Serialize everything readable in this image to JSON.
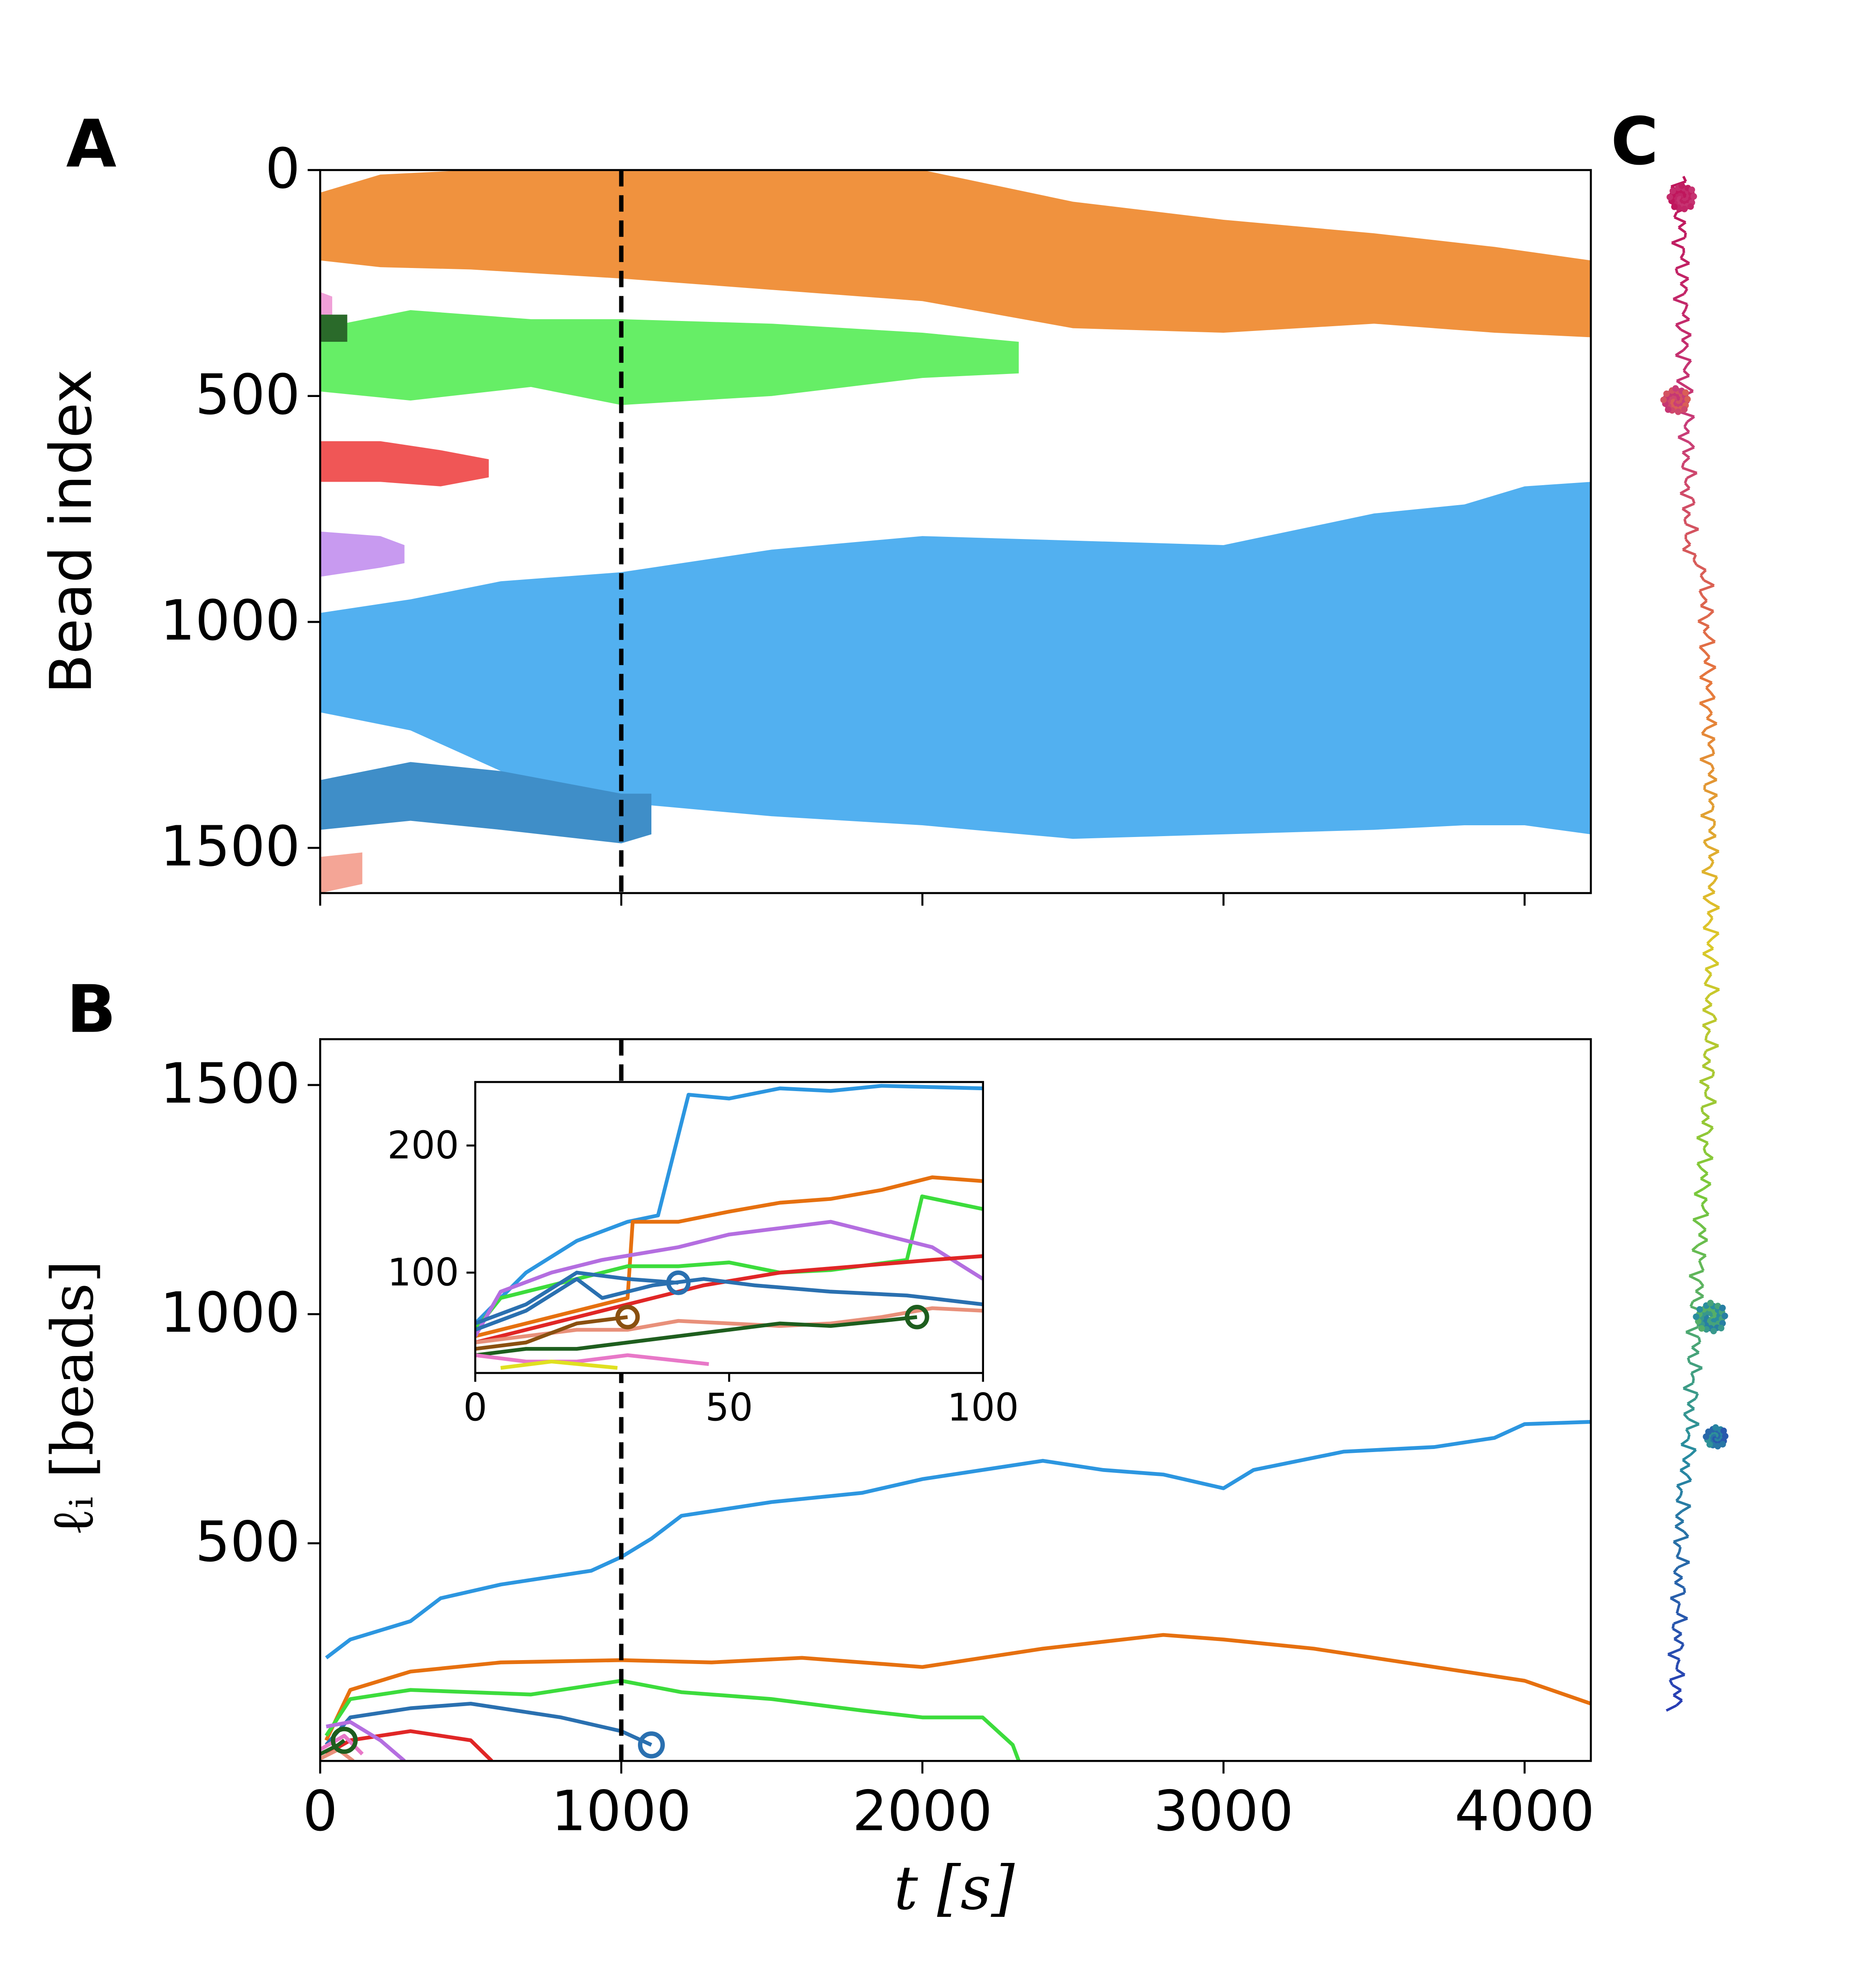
{
  "panel_c": {
    "label": "C"
  },
  "chart_data": [
    {
      "type": "band",
      "label": "A",
      "ylabel": "Bead index",
      "xlim": [
        0,
        4220
      ],
      "xticks": [
        0,
        1000,
        2000,
        3000,
        4000
      ],
      "ylim": [
        0,
        1600
      ],
      "y_inverted": true,
      "yticks": [
        0,
        500,
        1000,
        1500
      ],
      "vline": 1000,
      "series": [
        {
          "color": "#f0923e",
          "x": [
            0,
            200,
            500,
            1000,
            2000,
            2500,
            3000,
            3500,
            3900,
            4220
          ],
          "low": [
            50,
            10,
            0,
            0,
            0,
            70,
            110,
            140,
            170,
            200
          ],
          "high": [
            200,
            215,
            220,
            240,
            290,
            350,
            360,
            340,
            360,
            370
          ]
        },
        {
          "color": "#66ee66",
          "x": [
            0,
            300,
            700,
            1000,
            1500,
            2000,
            2320
          ],
          "low": [
            350,
            310,
            330,
            330,
            340,
            360,
            380
          ],
          "high": [
            490,
            510,
            480,
            520,
            500,
            460,
            450
          ]
        },
        {
          "color": "#f05656",
          "x": [
            0,
            200,
            400,
            560
          ],
          "low": [
            600,
            600,
            620,
            640
          ],
          "high": [
            690,
            690,
            700,
            680
          ]
        },
        {
          "color": "#c89af0",
          "x": [
            0,
            200,
            280
          ],
          "low": [
            800,
            810,
            830
          ],
          "high": [
            900,
            880,
            870
          ]
        },
        {
          "color": "#52b0f0",
          "x": [
            0,
            300,
            600,
            1000,
            1500,
            2000,
            2500,
            3000,
            3500,
            3800,
            4000,
            4220
          ],
          "low": [
            980,
            950,
            910,
            890,
            840,
            810,
            820,
            830,
            760,
            740,
            700,
            690
          ],
          "high": [
            1200,
            1240,
            1330,
            1400,
            1430,
            1450,
            1480,
            1470,
            1460,
            1450,
            1450,
            1470
          ]
        },
        {
          "color": "#3f8ec8",
          "x": [
            0,
            300,
            600,
            1000,
            1100
          ],
          "low": [
            1350,
            1310,
            1330,
            1380,
            1380
          ],
          "high": [
            1460,
            1440,
            1460,
            1490,
            1470
          ]
        },
        {
          "color": "#f4a596",
          "x": [
            0,
            140
          ],
          "low": [
            1520,
            1510
          ],
          "high": [
            1600,
            1580
          ]
        },
        {
          "color": "#f0a0d8",
          "x": [
            0,
            40
          ],
          "low": [
            270,
            280
          ],
          "high": [
            330,
            330
          ]
        },
        {
          "color": "#2a6a2a",
          "x": [
            0,
            90
          ],
          "low": [
            320,
            320
          ],
          "high": [
            380,
            380
          ]
        }
      ]
    },
    {
      "type": "line",
      "label": "B",
      "ylabel": "ℓᵢ [beads]",
      "xlabel": "t [s]",
      "xlim": [
        0,
        4220
      ],
      "xticks": [
        0,
        1000,
        2000,
        3000,
        4000
      ],
      "ylim": [
        25,
        1600
      ],
      "yticks": [
        500,
        1000,
        1500
      ],
      "vline": 1000,
      "series": [
        {
          "color": "#2c96e0",
          "x": [
            20,
            100,
            300,
            400,
            600,
            800,
            900,
            1000,
            1100,
            1200,
            1500,
            1800,
            2000,
            2400,
            2600,
            2800,
            3000,
            3100,
            3400,
            3700,
            3900,
            4000,
            4220
          ],
          "values": [
            250,
            290,
            330,
            380,
            410,
            430,
            440,
            470,
            510,
            560,
            590,
            610,
            640,
            680,
            660,
            650,
            620,
            660,
            700,
            710,
            730,
            760,
            765
          ]
        },
        {
          "color": "#e6700f",
          "x": [
            20,
            100,
            300,
            600,
            1000,
            1300,
            1600,
            2000,
            2200,
            2400,
            2800,
            3000,
            3300,
            3600,
            4000,
            4220
          ],
          "values": [
            70,
            180,
            220,
            240,
            245,
            240,
            250,
            230,
            250,
            270,
            300,
            290,
            270,
            240,
            200,
            150
          ]
        },
        {
          "color": "#3cdc3c",
          "x": [
            20,
            100,
            300,
            700,
            1000,
            1200,
            1500,
            1800,
            2000,
            2200,
            2300,
            2320
          ],
          "values": [
            80,
            160,
            180,
            170,
            200,
            175,
            160,
            135,
            120,
            120,
            60,
            25
          ]
        },
        {
          "color": "#2a70b0",
          "x": [
            20,
            100,
            300,
            500,
            800,
            1000,
            1100
          ],
          "values": [
            60,
            120,
            140,
            150,
            120,
            90,
            60
          ],
          "end_marker": true
        },
        {
          "color": "#e02626",
          "x": [
            20,
            100,
            300,
            500,
            570
          ],
          "values": [
            40,
            70,
            90,
            70,
            25
          ]
        },
        {
          "color": "#b46ee0",
          "x": [
            20,
            100,
            200,
            280
          ],
          "values": [
            100,
            110,
            70,
            25
          ]
        },
        {
          "color": "#e878c8",
          "x": [
            0,
            80,
            140
          ],
          "values": [
            50,
            80,
            40
          ]
        },
        {
          "color": "#1e5e1e",
          "x": [
            0,
            60,
            80
          ],
          "values": [
            40,
            60,
            70
          ],
          "end_marker": true
        },
        {
          "color": "#e8907a",
          "x": [
            0,
            60,
            110
          ],
          "values": [
            30,
            50,
            25
          ]
        }
      ]
    },
    {
      "type": "line",
      "xlim": [
        0,
        100
      ],
      "xticks": [
        0,
        50,
        100
      ],
      "ylim": [
        21,
        250
      ],
      "yticks": [
        100,
        200
      ],
      "series": [
        {
          "color": "#2c96e0",
          "x": [
            0,
            10,
            20,
            30,
            36,
            42,
            50,
            60,
            70,
            80,
            100
          ],
          "values": [
            60,
            100,
            125,
            140,
            145,
            240,
            237,
            245,
            243,
            247,
            245
          ]
        },
        {
          "color": "#e6700f",
          "x": [
            0,
            10,
            20,
            30,
            31,
            40,
            50,
            60,
            70,
            80,
            90,
            100
          ],
          "values": [
            50,
            60,
            70,
            80,
            140,
            140,
            148,
            155,
            158,
            165,
            175,
            172
          ]
        },
        {
          "color": "#3cdc3c",
          "x": [
            0,
            5,
            10,
            20,
            30,
            40,
            50,
            60,
            70,
            85,
            88,
            100
          ],
          "values": [
            55,
            80,
            85,
            95,
            105,
            105,
            108,
            100,
            102,
            110,
            160,
            150
          ]
        },
        {
          "color": "#b46ee0",
          "x": [
            0,
            5,
            15,
            25,
            40,
            50,
            60,
            70,
            80,
            90,
            100
          ],
          "values": [
            50,
            85,
            100,
            110,
            120,
            130,
            135,
            140,
            130,
            120,
            95
          ]
        },
        {
          "color": "#e02626",
          "x": [
            0,
            10,
            20,
            30,
            45,
            60,
            75,
            90,
            100
          ],
          "values": [
            45,
            55,
            65,
            75,
            90,
            100,
            105,
            110,
            113
          ]
        },
        {
          "color": "#2a70b0",
          "x": [
            0,
            10,
            20,
            25,
            35,
            45,
            55,
            70,
            85,
            100
          ],
          "values": [
            55,
            70,
            95,
            80,
            90,
            95,
            90,
            85,
            82,
            75
          ]
        },
        {
          "color": "#2a70b0",
          "x": [
            0,
            10,
            20,
            30,
            40
          ],
          "values": [
            60,
            75,
            100,
            95,
            92
          ],
          "end_marker": true
        },
        {
          "color": "#e8907a",
          "x": [
            0,
            10,
            20,
            30,
            40,
            50,
            60,
            70,
            80,
            90,
            100
          ],
          "values": [
            45,
            50,
            55,
            55,
            62,
            60,
            58,
            60,
            65,
            72,
            70
          ]
        },
        {
          "color": "#1e5e1e",
          "x": [
            0,
            10,
            20,
            30,
            40,
            50,
            60,
            70,
            80,
            87
          ],
          "values": [
            35,
            40,
            40,
            45,
            50,
            55,
            60,
            58,
            62,
            65
          ],
          "end_marker": true
        },
        {
          "color": "#8a5010",
          "x": [
            0,
            10,
            20,
            30
          ],
          "values": [
            40,
            45,
            60,
            65
          ],
          "end_marker": true
        },
        {
          "color": "#e878c8",
          "x": [
            0,
            10,
            20,
            30,
            46
          ],
          "values": [
            35,
            30,
            30,
            35,
            28
          ]
        },
        {
          "color": "#e0e020",
          "x": [
            5,
            15,
            28
          ],
          "values": [
            25,
            30,
            25
          ]
        }
      ]
    }
  ]
}
